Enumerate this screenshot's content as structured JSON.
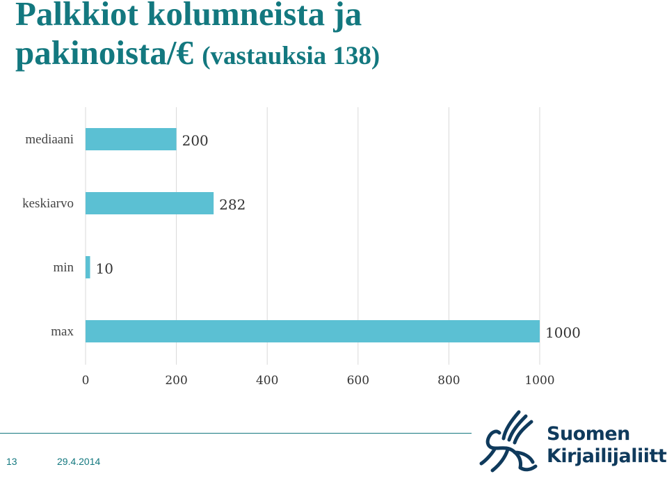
{
  "title": {
    "line1": "Palkkiot kolumneista ja",
    "line2": "pakinoista/€ ",
    "line2_sub": "(vastauksia 138)"
  },
  "chart_data": {
    "type": "bar",
    "orientation": "horizontal",
    "categories": [
      "mediaani",
      "keskiarvo",
      "min",
      "max"
    ],
    "values": [
      200,
      282,
      10,
      1000
    ],
    "xlim": [
      0,
      1000
    ],
    "ticks": [
      "0",
      "200",
      "400",
      "600",
      "800",
      "1000"
    ],
    "grid": true,
    "bar_color": "#5bc0d3",
    "grid_color": "#d9d9d9"
  },
  "footer": {
    "page_number": "13",
    "date": "29.4.2014",
    "logo_line1": "Suomen",
    "logo_line2": "Kirjailijaliitto"
  },
  "colors": {
    "title": "#13787f",
    "logo": "#0f3a5c"
  }
}
